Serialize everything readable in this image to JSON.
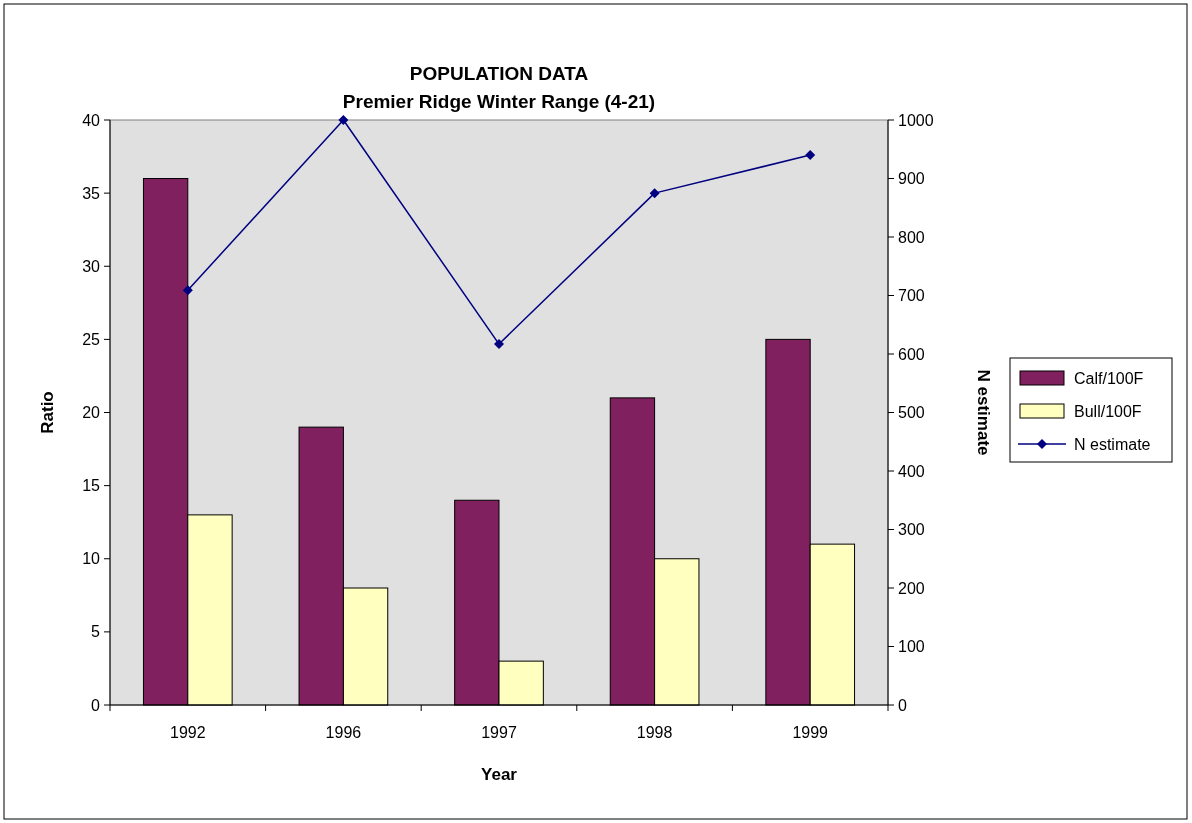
{
  "chart_data": {
    "type": "bar",
    "title": "POPULATION DATA",
    "subtitle": "Premier Ridge Winter Range (4-21)",
    "xlabel": "Year",
    "ylabel": "Ratio",
    "y2label": "N estimate",
    "categories": [
      "1992",
      "1996",
      "1997",
      "1998",
      "1999"
    ],
    "series": [
      {
        "name": "Calf/100F",
        "color": "#80205f",
        "values": [
          36,
          19,
          14,
          21,
          25
        ]
      },
      {
        "name": "Bull/100F",
        "color": "#ffffc0",
        "values": [
          13,
          8,
          3,
          10,
          11
        ]
      },
      {
        "name": "N estimate",
        "type": "line",
        "axis": "y2",
        "color": "#000080",
        "marker": "diamond",
        "values": [
          709,
          1000,
          617,
          875,
          940
        ]
      }
    ],
    "ylim": [
      0,
      40
    ],
    "yticks": [
      0,
      5,
      10,
      15,
      20,
      25,
      30,
      35,
      40
    ],
    "y2lim": [
      0,
      1000
    ],
    "y2ticks": [
      0,
      100,
      200,
      300,
      400,
      500,
      600,
      700,
      800,
      900,
      1000
    ],
    "grid": false,
    "legend": "right"
  }
}
